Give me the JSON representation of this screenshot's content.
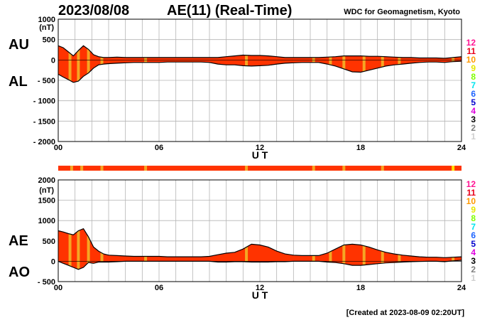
{
  "header": {
    "date": "2023/08/08",
    "title": "AE(11) (Real-Time)",
    "source": "WDC for Geomagnetism, Kyoto"
  },
  "footer": {
    "created": "[Created at 2023-08-09 02:20UT]"
  },
  "colors": {
    "fill_main": "#ff3300",
    "highlight": "#f5a623",
    "line": "#000000",
    "grid": "#b4b4b4"
  },
  "legend": [
    {
      "label": "12",
      "color": "#ff1493"
    },
    {
      "label": "11",
      "color": "#e8001a"
    },
    {
      "label": "10",
      "color": "#ff9900"
    },
    {
      "label": "9",
      "color": "#e6e600"
    },
    {
      "label": "8",
      "color": "#7fff00"
    },
    {
      "label": "7",
      "color": "#00e5ee"
    },
    {
      "label": "6",
      "color": "#1e64ff"
    },
    {
      "label": "5",
      "color": "#0000cd"
    },
    {
      "label": "4",
      "color": "#dd00dd"
    },
    {
      "label": "3",
      "color": "#000000"
    },
    {
      "label": "2",
      "color": "#808080"
    },
    {
      "label": "1",
      "color": "#cfcfcf"
    }
  ],
  "chart_data": [
    {
      "type": "area",
      "series_labels": [
        "AU",
        "AL"
      ],
      "xlabel": "U T",
      "ylabel_unit": "(nT)",
      "ylim": [
        -2000,
        1000
      ],
      "xlim": [
        0,
        24
      ],
      "x_ticks": [
        "00",
        "06",
        "12",
        "18",
        "24"
      ],
      "y_ticks": [
        "1000",
        "500",
        "0",
        "- 500",
        "- 1000",
        "- 1500",
        "- 2000"
      ],
      "y_tick_values": [
        1000,
        500,
        0,
        -500,
        -1000,
        -1500,
        -2000
      ],
      "x": [
        0,
        0.3,
        0.6,
        0.9,
        1.2,
        1.5,
        1.8,
        2.1,
        2.4,
        2.7,
        3,
        3.5,
        4,
        4.5,
        5,
        5.5,
        6,
        6.5,
        7,
        7.5,
        8,
        8.5,
        9,
        9.5,
        10,
        10.5,
        11,
        11.5,
        12,
        12.5,
        13,
        13.5,
        14,
        14.5,
        15,
        15.5,
        16,
        16.5,
        17,
        17.5,
        18,
        18.5,
        19,
        19.5,
        20,
        20.5,
        21,
        21.5,
        22,
        22.5,
        23,
        23.5,
        24
      ],
      "series": [
        {
          "name": "AU",
          "values": [
            350,
            300,
            200,
            100,
            230,
            350,
            260,
            130,
            80,
            60,
            60,
            70,
            60,
            60,
            60,
            60,
            60,
            60,
            60,
            60,
            60,
            60,
            60,
            60,
            80,
            100,
            120,
            110,
            110,
            100,
            80,
            60,
            60,
            60,
            60,
            60,
            70,
            80,
            100,
            100,
            100,
            90,
            90,
            80,
            70,
            60,
            60,
            50,
            50,
            50,
            40,
            60,
            80
          ]
        },
        {
          "name": "AL",
          "values": [
            -350,
            -420,
            -480,
            -550,
            -520,
            -400,
            -320,
            -200,
            -120,
            -100,
            -90,
            -80,
            -70,
            -60,
            -60,
            -60,
            -60,
            -50,
            -50,
            -50,
            -50,
            -50,
            -60,
            -100,
            -120,
            -120,
            -140,
            -150,
            -140,
            -130,
            -100,
            -80,
            -70,
            -60,
            -60,
            -60,
            -100,
            -150,
            -220,
            -290,
            -300,
            -250,
            -200,
            -150,
            -120,
            -100,
            -80,
            -60,
            -50,
            -50,
            -60,
            -40,
            -30
          ]
        }
      ],
      "highlight_hours": [
        0.7,
        1.2,
        1.8,
        2.6,
        5.2,
        11.2,
        15.2,
        16.2,
        17.0,
        18.2,
        19.3,
        20.3,
        23.5
      ]
    },
    {
      "type": "area",
      "series_labels": [
        "AE",
        "AO"
      ],
      "xlabel": "U T",
      "ylabel_unit": "(nT)",
      "ylim": [
        -500,
        2000
      ],
      "xlim": [
        0,
        24
      ],
      "x_ticks": [
        "00",
        "06",
        "12",
        "18",
        "24"
      ],
      "y_ticks": [
        "2000",
        "1500",
        "1000",
        "500",
        "0",
        "- 500"
      ],
      "y_tick_values": [
        2000,
        1500,
        1000,
        500,
        0,
        -500
      ],
      "x": [
        0,
        0.3,
        0.6,
        0.9,
        1.2,
        1.5,
        1.8,
        2.1,
        2.4,
        2.7,
        3,
        3.5,
        4,
        4.5,
        5,
        5.5,
        6,
        6.5,
        7,
        7.5,
        8,
        8.5,
        9,
        9.5,
        10,
        10.5,
        11,
        11.5,
        12,
        12.5,
        13,
        13.5,
        14,
        14.5,
        15,
        15.5,
        16,
        16.5,
        17,
        17.5,
        18,
        18.5,
        19,
        19.5,
        20,
        20.5,
        21,
        21.5,
        22,
        22.5,
        23,
        23.5,
        24
      ],
      "series": [
        {
          "name": "AE",
          "values": [
            750,
            720,
            680,
            650,
            750,
            800,
            600,
            350,
            250,
            180,
            150,
            140,
            130,
            120,
            120,
            120,
            120,
            110,
            110,
            110,
            110,
            110,
            120,
            160,
            200,
            220,
            300,
            420,
            400,
            350,
            250,
            180,
            150,
            140,
            140,
            140,
            200,
            300,
            400,
            420,
            400,
            350,
            280,
            220,
            180,
            150,
            130,
            110,
            100,
            100,
            90,
            100,
            110
          ]
        },
        {
          "name": "AO",
          "values": [
            0,
            -50,
            -100,
            -150,
            -200,
            -150,
            -30,
            -50,
            -20,
            -20,
            -20,
            -10,
            0,
            0,
            0,
            0,
            0,
            0,
            0,
            0,
            0,
            0,
            0,
            -20,
            -20,
            -10,
            -10,
            -20,
            -20,
            -20,
            -10,
            -10,
            0,
            0,
            0,
            0,
            -20,
            -30,
            -60,
            -100,
            -100,
            -80,
            -60,
            -40,
            -30,
            -20,
            -10,
            -5,
            0,
            0,
            -10,
            10,
            25
          ]
        }
      ],
      "highlight_hours": [
        0.7,
        1.2,
        1.8,
        2.6,
        5.2,
        11.2,
        15.2,
        16.2,
        17.0,
        18.2,
        19.3,
        20.3,
        23.5
      ]
    }
  ],
  "level_strip": {
    "base_color": "#ff3300",
    "marks": [
      {
        "hour": 0.8,
        "color": "#f5a623"
      },
      {
        "hour": 1.4,
        "color": "#f5a623"
      },
      {
        "hour": 2.6,
        "color": "#f5a623"
      },
      {
        "hour": 5.2,
        "color": "#f5a623"
      },
      {
        "hour": 11.2,
        "color": "#f5a623"
      },
      {
        "hour": 15.2,
        "color": "#f5a623"
      },
      {
        "hour": 17.0,
        "color": "#f5a623"
      },
      {
        "hour": 19.3,
        "color": "#f5a623"
      },
      {
        "hour": 23.5,
        "color": "#ffe000"
      }
    ]
  }
}
